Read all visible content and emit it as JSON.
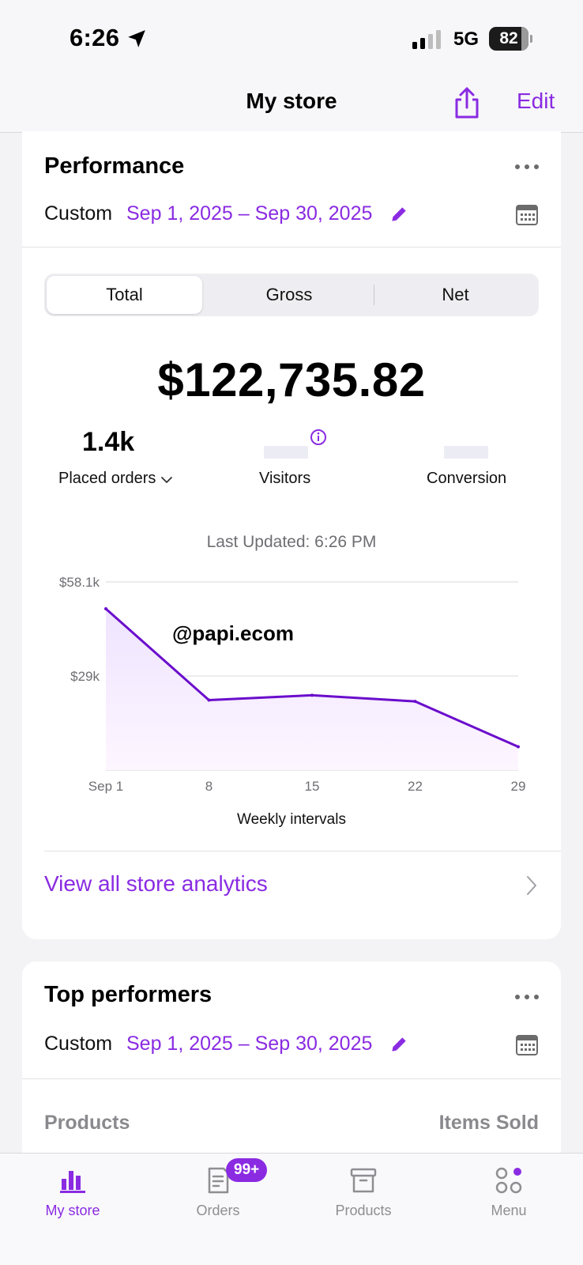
{
  "status_bar": {
    "time": "6:26",
    "network": "5G",
    "battery": "82",
    "battery_level": 0.82
  },
  "nav": {
    "title": "My store",
    "edit_label": "Edit",
    "share_icon": "share-icon"
  },
  "performance": {
    "title": "Performance",
    "range_label": "Custom",
    "range_value": "Sep 1, 2025 – Sep 30, 2025",
    "tabs": [
      {
        "label": "Total",
        "active": true
      },
      {
        "label": "Gross",
        "active": false
      },
      {
        "label": "Net",
        "active": false
      }
    ],
    "total": "$122,735.82",
    "metrics": {
      "orders_value": "1.4k",
      "orders_label": "Placed orders",
      "visitors_label": "Visitors",
      "conversion_label": "Conversion"
    },
    "last_updated": "Last Updated: 6:26 PM",
    "watermark": "@papi.ecom",
    "analytics_link": "View all store analytics"
  },
  "chart_data": {
    "type": "area",
    "x": [
      "Sep 1",
      "8",
      "15",
      "22",
      "29"
    ],
    "values": [
      49800,
      21600,
      23100,
      21200,
      7200
    ],
    "y_ticks": [
      "$58.1k",
      "$29k"
    ],
    "ylim": [
      0,
      58100
    ],
    "xlabel": "Weekly intervals",
    "ylabel": "",
    "title": "",
    "grid": true,
    "line_color": "#6a0dcc",
    "fill_color": "#efe4ff"
  },
  "top_performers": {
    "title": "Top performers",
    "range_label": "Custom",
    "range_value": "Sep 1, 2025 – Sep 30, 2025",
    "columns": [
      "Products",
      "Items Sold"
    ]
  },
  "tabbar": {
    "tabs": [
      {
        "label": "My store",
        "icon": "bar-chart-icon",
        "active": true
      },
      {
        "label": "Orders",
        "icon": "orders-icon",
        "badge": "99+"
      },
      {
        "label": "Products",
        "icon": "archive-box-icon"
      },
      {
        "label": "Menu",
        "icon": "menu-grid-icon"
      }
    ]
  },
  "colors": {
    "accent": "#8a2be2",
    "background": "#f3f3f6"
  }
}
